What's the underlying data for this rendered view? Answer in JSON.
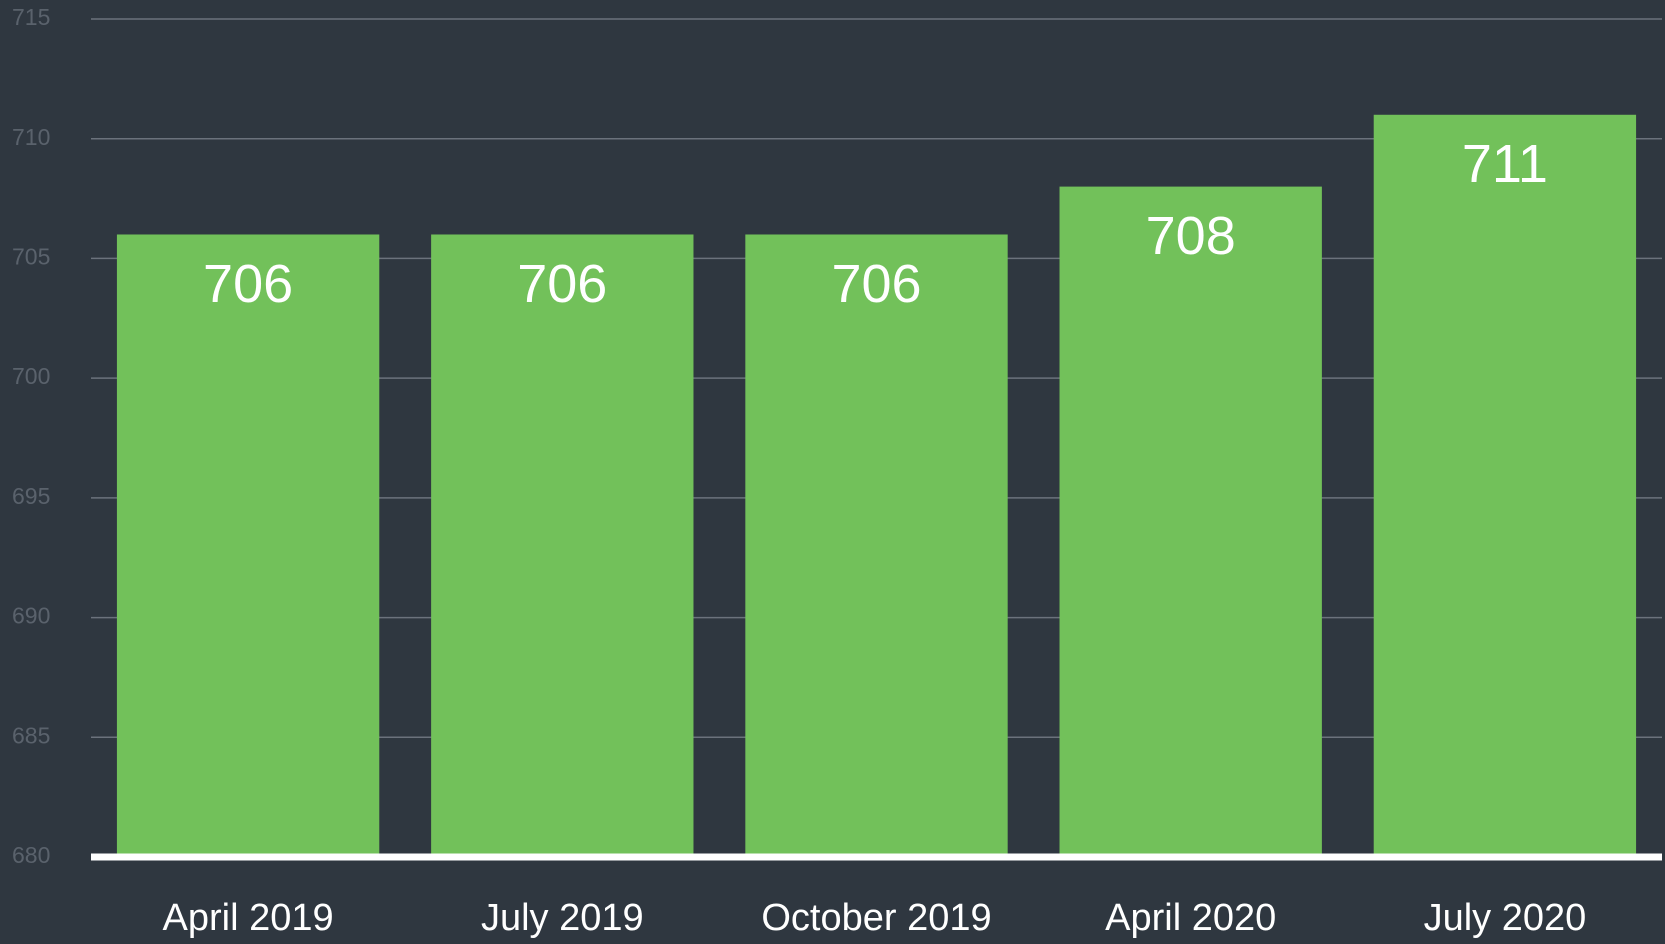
{
  "chart_data": {
    "type": "bar",
    "categories": [
      "April 2019",
      "July 2019",
      "October 2019",
      "April 2020",
      "July 2020"
    ],
    "values": [
      706,
      706,
      706,
      708,
      711
    ],
    "color": "#72c15a",
    "ylim": [
      680,
      715
    ],
    "yticks": [
      680,
      685,
      690,
      695,
      700,
      705,
      710,
      715
    ],
    "grid": true
  }
}
